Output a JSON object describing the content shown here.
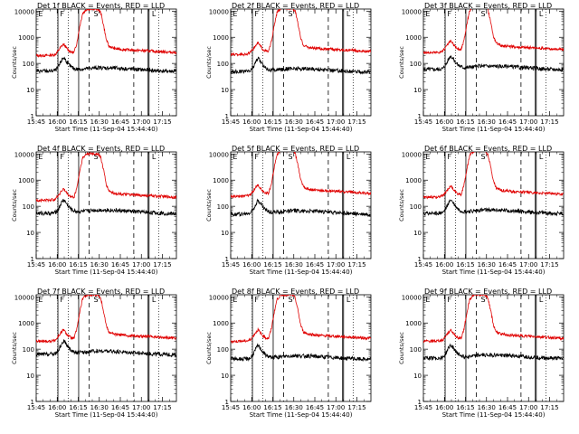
{
  "colors": {
    "events": "#000000",
    "lld": "#e00000",
    "axis": "#000000"
  },
  "common": {
    "ylabel": "Counts/sec",
    "xlabel": "Start Time (11-Sep-04 15:44:40)",
    "xticks": [
      "15:45",
      "16:00",
      "16:15",
      "16:30",
      "16:45",
      "17:00",
      "17:15"
    ],
    "yticks": [
      "1",
      "10",
      "100",
      "1000",
      "10000"
    ],
    "xlim_minutes": [
      0,
      100
    ],
    "ylim_log10": [
      0,
      4.08
    ]
  },
  "chart_data": [
    {
      "type": "line",
      "title": "Det 1f BLACK = Events, RED = LLD",
      "series": [
        {
          "values_key": "events"
        },
        {
          "values_key": "lld"
        }
      ],
      "markers": [
        "E",
        "F",
        "S",
        "L"
      ]
    },
    {
      "type": "line",
      "title": "Det 2f BLACK = Events, RED = LLD",
      "series": [
        {
          "values_key": "events"
        },
        {
          "values_key": "lld"
        }
      ],
      "markers": [
        "E",
        "F",
        "S",
        "L"
      ]
    },
    {
      "type": "line",
      "title": "Det 3f BLACK = Events, RED = LLD",
      "series": [
        {
          "values_key": "events"
        },
        {
          "values_key": "lld"
        }
      ],
      "markers": [
        "E",
        "F",
        "S",
        "L"
      ]
    },
    {
      "type": "line",
      "title": "Det 4f BLACK = Events, RED = LLD",
      "series": [
        {
          "values_key": "events"
        },
        {
          "values_key": "lld"
        }
      ],
      "markers": [
        "E",
        "F",
        "S",
        "L"
      ]
    },
    {
      "type": "line",
      "title": "Det 5f BLACK = Events, RED = LLD",
      "series": [
        {
          "values_key": "events"
        },
        {
          "values_key": "lld"
        }
      ],
      "markers": [
        "E",
        "F",
        "S",
        "L"
      ]
    },
    {
      "type": "line",
      "title": "Det 6f BLACK = Events, RED = LLD",
      "series": [
        {
          "values_key": "events"
        },
        {
          "values_key": "lld"
        }
      ],
      "markers": [
        "E",
        "F",
        "S",
        "L"
      ]
    },
    {
      "type": "line",
      "title": "Det 7f BLACK = Events, RED = LLD",
      "series": [
        {
          "values_key": "events"
        },
        {
          "values_key": "lld"
        }
      ],
      "markers": [
        "E",
        "F",
        "S",
        "L"
      ]
    },
    {
      "type": "line",
      "title": "Det 8f BLACK = Events, RED = LLD",
      "series": [
        {
          "values_key": "events"
        },
        {
          "values_key": "lld"
        }
      ],
      "markers": [
        "E",
        "F",
        "S",
        "L"
      ]
    },
    {
      "type": "line",
      "title": "Det 9f BLACK = Events, RED = LLD",
      "series": [
        {
          "values_key": "events"
        },
        {
          "values_key": "lld"
        }
      ],
      "markers": [
        "E",
        "F",
        "S",
        "L"
      ]
    }
  ],
  "curves": {
    "events_points": [
      [
        0,
        60
      ],
      [
        5,
        60
      ],
      [
        10,
        60
      ],
      [
        12,
        62
      ],
      [
        14,
        65
      ],
      [
        16,
        90
      ],
      [
        18,
        150
      ],
      [
        19.5,
        200
      ],
      [
        21,
        160
      ],
      [
        23,
        110
      ],
      [
        25,
        85
      ],
      [
        27,
        75
      ],
      [
        29,
        70
      ],
      [
        35,
        72
      ],
      [
        40,
        78
      ],
      [
        45,
        80
      ],
      [
        55,
        78
      ],
      [
        62,
        75
      ],
      [
        70,
        70
      ],
      [
        80,
        65
      ],
      [
        90,
        60
      ],
      [
        100,
        58
      ]
    ],
    "lld_points": [
      [
        0,
        200
      ],
      [
        5,
        200
      ],
      [
        10,
        205
      ],
      [
        12,
        210
      ],
      [
        14,
        230
      ],
      [
        16,
        320
      ],
      [
        18,
        450
      ],
      [
        19.5,
        550
      ],
      [
        21,
        430
      ],
      [
        23,
        320
      ],
      [
        25,
        270
      ],
      [
        27,
        260
      ],
      [
        29,
        600
      ],
      [
        31,
        2500
      ],
      [
        33,
        8000
      ],
      [
        36,
        12000
      ],
      [
        41,
        12000
      ],
      [
        44,
        12000
      ],
      [
        46,
        9000
      ],
      [
        48,
        3000
      ],
      [
        50,
        800
      ],
      [
        52,
        450
      ],
      [
        56,
        370
      ],
      [
        62,
        340
      ],
      [
        70,
        320
      ],
      [
        80,
        300
      ],
      [
        90,
        280
      ],
      [
        100,
        260
      ]
    ]
  },
  "event_lines": {
    "dotted_min": [
      15.3,
      22.8,
      87.3
    ],
    "solid_min": [
      15.5,
      30.3,
      79.8,
      80.5
    ],
    "dashed_min": [
      37.8,
      69.6
    ]
  },
  "panels_variation": [
    {
      "events_scale": 0.85,
      "lld_scale": 1.0
    },
    {
      "events_scale": 0.8,
      "lld_scale": 1.1
    },
    {
      "events_scale": 1.0,
      "lld_scale": 1.3
    },
    {
      "events_scale": 0.9,
      "lld_scale": 0.85
    },
    {
      "events_scale": 0.85,
      "lld_scale": 1.2
    },
    {
      "events_scale": 0.9,
      "lld_scale": 1.1
    },
    {
      "events_scale": 1.05,
      "lld_scale": 1.0
    },
    {
      "events_scale": 0.7,
      "lld_scale": 1.0
    },
    {
      "events_scale": 0.75,
      "lld_scale": 1.0
    }
  ]
}
